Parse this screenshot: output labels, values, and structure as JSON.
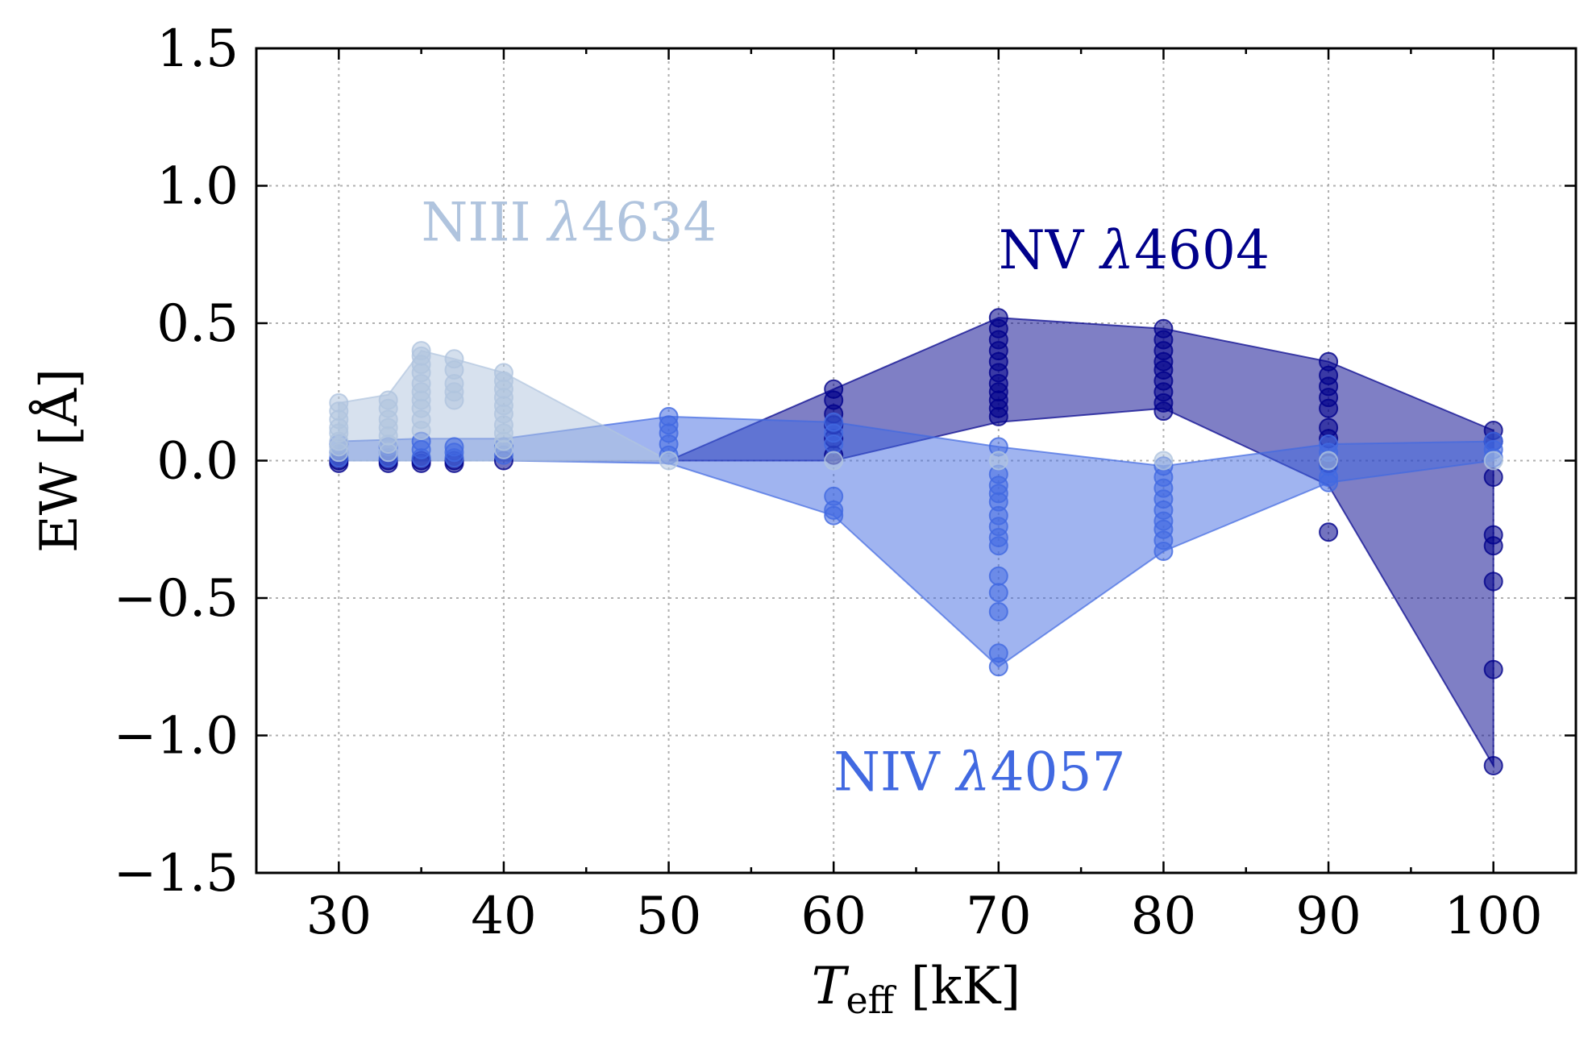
{
  "chart_data": {
    "type": "scatter",
    "xlabel_main": "T",
    "xlabel_sub": "eff",
    "xlabel_unit": " [kK]",
    "ylabel": "EW [Å]",
    "xlim": [
      25,
      105
    ],
    "ylim": [
      -1.5,
      1.5
    ],
    "grid": true,
    "xticks": [
      30,
      40,
      50,
      60,
      70,
      80,
      90,
      100
    ],
    "yticks": [
      1.5,
      1.0,
      0.5,
      0.0,
      -0.5,
      -1.0,
      -1.5
    ],
    "ytick_labels": [
      "1.5",
      "1.0",
      "0.5",
      "0.0",
      "−0.5",
      "−1.0",
      "−1.5"
    ],
    "series": [
      {
        "name": "NV λ4604",
        "label_text": "NV ",
        "label_lambda": "λ",
        "label_wave": "4604",
        "label_at": [
          70,
          0.7
        ],
        "color": "#00008b",
        "band_upper": [
          [
            40,
            0.0
          ],
          [
            50,
            0.0
          ],
          [
            60,
            0.26
          ],
          [
            70,
            0.52
          ],
          [
            80,
            0.48
          ],
          [
            90,
            0.36
          ],
          [
            100,
            0.11
          ]
        ],
        "band_lower": [
          [
            40,
            0.0
          ],
          [
            50,
            0.0
          ],
          [
            60,
            0.0
          ],
          [
            70,
            0.14
          ],
          [
            80,
            0.19
          ],
          [
            90,
            -0.09
          ],
          [
            100,
            -1.11
          ]
        ],
        "points": [
          [
            30,
            0.0
          ],
          [
            30,
            -0.01
          ],
          [
            33,
            0.0
          ],
          [
            33,
            -0.01
          ],
          [
            35,
            0.0
          ],
          [
            35,
            -0.01
          ],
          [
            37,
            0.0
          ],
          [
            37,
            -0.01
          ],
          [
            40,
            0.0
          ],
          [
            60,
            0.26
          ],
          [
            60,
            0.22
          ],
          [
            60,
            0.17
          ],
          [
            60,
            0.13
          ],
          [
            60,
            0.08
          ],
          [
            60,
            0.02
          ],
          [
            70,
            0.52
          ],
          [
            70,
            0.48
          ],
          [
            70,
            0.44
          ],
          [
            70,
            0.4
          ],
          [
            70,
            0.36
          ],
          [
            70,
            0.32
          ],
          [
            70,
            0.28
          ],
          [
            70,
            0.25
          ],
          [
            70,
            0.22
          ],
          [
            70,
            0.19
          ],
          [
            70,
            0.16
          ],
          [
            80,
            0.48
          ],
          [
            80,
            0.44
          ],
          [
            80,
            0.4
          ],
          [
            80,
            0.36
          ],
          [
            80,
            0.33
          ],
          [
            80,
            0.29
          ],
          [
            80,
            0.25
          ],
          [
            80,
            0.21
          ],
          [
            80,
            0.18
          ],
          [
            90,
            0.36
          ],
          [
            90,
            0.31
          ],
          [
            90,
            0.27
          ],
          [
            90,
            0.23
          ],
          [
            90,
            0.19
          ],
          [
            90,
            0.12
          ],
          [
            90,
            0.08
          ],
          [
            90,
            -0.01
          ],
          [
            90,
            -0.26
          ],
          [
            100,
            0.11
          ],
          [
            100,
            0.07
          ],
          [
            100,
            -0.06
          ],
          [
            100,
            -0.27
          ],
          [
            100,
            -0.31
          ],
          [
            100,
            -0.44
          ],
          [
            100,
            -0.76
          ],
          [
            100,
            -1.11
          ]
        ]
      },
      {
        "name": "NIV λ4057",
        "label_text": "NIV ",
        "label_lambda": "λ",
        "label_wave": "4057",
        "label_at": [
          60,
          -1.2
        ],
        "color": "#4169e1",
        "band_upper": [
          [
            30,
            0.07
          ],
          [
            35,
            0.08
          ],
          [
            40,
            0.08
          ],
          [
            50,
            0.16
          ],
          [
            60,
            0.14
          ],
          [
            70,
            0.05
          ],
          [
            80,
            -0.02
          ],
          [
            90,
            0.06
          ],
          [
            100,
            0.07
          ]
        ],
        "band_lower": [
          [
            30,
            0.0
          ],
          [
            40,
            0.0
          ],
          [
            50,
            -0.01
          ],
          [
            60,
            -0.2
          ],
          [
            70,
            -0.75
          ],
          [
            80,
            -0.33
          ],
          [
            90,
            -0.08
          ],
          [
            100,
            0.0
          ]
        ],
        "points": [
          [
            30,
            0.06
          ],
          [
            30,
            0.03
          ],
          [
            30,
            0.01
          ],
          [
            33,
            0.05
          ],
          [
            33,
            0.03
          ],
          [
            33,
            0.01
          ],
          [
            35,
            0.07
          ],
          [
            35,
            0.04
          ],
          [
            35,
            0.01
          ],
          [
            37,
            0.05
          ],
          [
            37,
            0.03
          ],
          [
            37,
            0.01
          ],
          [
            40,
            0.05
          ],
          [
            40,
            0.02
          ],
          [
            50,
            0.16
          ],
          [
            50,
            0.13
          ],
          [
            50,
            0.1
          ],
          [
            50,
            0.06
          ],
          [
            50,
            0.02
          ],
          [
            60,
            0.14
          ],
          [
            60,
            0.1
          ],
          [
            60,
            0.06
          ],
          [
            60,
            -0.13
          ],
          [
            60,
            -0.18
          ],
          [
            60,
            -0.2
          ],
          [
            70,
            0.05
          ],
          [
            70,
            -0.05
          ],
          [
            70,
            -0.09
          ],
          [
            70,
            -0.12
          ],
          [
            70,
            -0.15
          ],
          [
            70,
            -0.2
          ],
          [
            70,
            -0.24
          ],
          [
            70,
            -0.28
          ],
          [
            70,
            -0.31
          ],
          [
            70,
            -0.42
          ],
          [
            70,
            -0.48
          ],
          [
            70,
            -0.55
          ],
          [
            70,
            -0.7
          ],
          [
            70,
            -0.75
          ],
          [
            80,
            -0.02
          ],
          [
            80,
            -0.06
          ],
          [
            80,
            -0.1
          ],
          [
            80,
            -0.14
          ],
          [
            80,
            -0.18
          ],
          [
            80,
            -0.22
          ],
          [
            80,
            -0.25
          ],
          [
            80,
            -0.29
          ],
          [
            80,
            -0.33
          ],
          [
            90,
            0.06
          ],
          [
            90,
            0.03
          ],
          [
            90,
            -0.02
          ],
          [
            90,
            -0.06
          ],
          [
            90,
            -0.08
          ],
          [
            100,
            0.07
          ],
          [
            100,
            0.04
          ],
          [
            100,
            0.01
          ]
        ]
      },
      {
        "name": "NIII λ4634",
        "label_text": "NIII ",
        "label_lambda": "λ",
        "label_wave": "4634",
        "label_at": [
          35,
          0.8
        ],
        "color": "#b0c4de",
        "band_upper": [
          [
            30,
            0.21
          ],
          [
            33,
            0.24
          ],
          [
            35,
            0.4
          ],
          [
            37,
            0.37
          ],
          [
            40,
            0.32
          ],
          [
            50,
            0.0
          ]
        ],
        "band_lower": [
          [
            30,
            0.0
          ],
          [
            40,
            0.0
          ],
          [
            50,
            0.0
          ]
        ],
        "points": [
          [
            30,
            0.21
          ],
          [
            30,
            0.18
          ],
          [
            30,
            0.15
          ],
          [
            30,
            0.12
          ],
          [
            30,
            0.1
          ],
          [
            30,
            0.07
          ],
          [
            30,
            0.05
          ],
          [
            30,
            0.03
          ],
          [
            33,
            0.22
          ],
          [
            33,
            0.19
          ],
          [
            33,
            0.15
          ],
          [
            33,
            0.12
          ],
          [
            33,
            0.09
          ],
          [
            33,
            0.06
          ],
          [
            33,
            0.03
          ],
          [
            35,
            0.4
          ],
          [
            35,
            0.38
          ],
          [
            35,
            0.35
          ],
          [
            35,
            0.32
          ],
          [
            35,
            0.28
          ],
          [
            35,
            0.25
          ],
          [
            35,
            0.22
          ],
          [
            35,
            0.19
          ],
          [
            35,
            0.15
          ],
          [
            35,
            0.11
          ],
          [
            37,
            0.37
          ],
          [
            37,
            0.33
          ],
          [
            37,
            0.28
          ],
          [
            37,
            0.25
          ],
          [
            37,
            0.22
          ],
          [
            40,
            0.32
          ],
          [
            40,
            0.29
          ],
          [
            40,
            0.26
          ],
          [
            40,
            0.23
          ],
          [
            40,
            0.2
          ],
          [
            40,
            0.17
          ],
          [
            40,
            0.13
          ],
          [
            40,
            0.1
          ],
          [
            40,
            0.07
          ],
          [
            40,
            0.04
          ],
          [
            50,
            0.0
          ],
          [
            60,
            0.0
          ],
          [
            70,
            0.0
          ],
          [
            80,
            0.0
          ],
          [
            90,
            0.0
          ],
          [
            100,
            0.0
          ]
        ]
      }
    ]
  }
}
